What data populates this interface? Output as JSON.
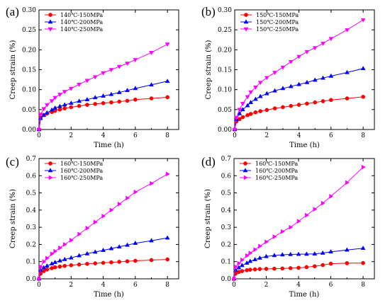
{
  "chart_data": [
    {
      "type": "line",
      "panel_label": "(a)",
      "xlabel": "Time (h)",
      "ylabel": "Creep strain (%)",
      "xlim": [
        0,
        8.7
      ],
      "ylim": [
        0,
        0.3
      ],
      "xticks": [
        "0",
        "2",
        "4",
        "6",
        "8"
      ],
      "yticks": [
        "0.00",
        "0.05",
        "0.10",
        "0.15",
        "0.20",
        "0.25",
        "0.30"
      ],
      "grid": false,
      "legend": "top-left",
      "series": [
        {
          "name": "140℃-150MPa",
          "color": "#ff0000",
          "marker": "circle",
          "x": [
            0,
            0.1,
            0.3,
            0.5,
            0.8,
            1.0,
            1.3,
            1.6,
            2.0,
            2.5,
            3.0,
            3.5,
            4.0,
            4.5,
            5.0,
            5.5,
            6.0,
            7.0,
            8.0
          ],
          "y": [
            0,
            0.03,
            0.036,
            0.04,
            0.044,
            0.047,
            0.05,
            0.053,
            0.056,
            0.059,
            0.062,
            0.064,
            0.066,
            0.068,
            0.07,
            0.072,
            0.075,
            0.078,
            0.081
          ]
        },
        {
          "name": "140℃-200MPa",
          "color": "#0000ff",
          "marker": "triangle",
          "x": [
            0,
            0.1,
            0.3,
            0.5,
            0.8,
            1.0,
            1.3,
            1.6,
            2.0,
            2.5,
            3.0,
            3.5,
            4.0,
            4.5,
            5.0,
            5.5,
            6.0,
            7.0,
            8.0
          ],
          "y": [
            0,
            0.028,
            0.036,
            0.042,
            0.049,
            0.054,
            0.058,
            0.062,
            0.066,
            0.071,
            0.075,
            0.08,
            0.084,
            0.088,
            0.093,
            0.098,
            0.103,
            0.112,
            0.121
          ]
        },
        {
          "name": "140℃-250MPa",
          "color": "#ff00ff",
          "marker": "triangle-down",
          "x": [
            0,
            0.1,
            0.3,
            0.5,
            0.8,
            1.0,
            1.3,
            1.6,
            2.0,
            2.5,
            3.0,
            3.5,
            4.0,
            4.5,
            5.0,
            5.5,
            6.0,
            7.0,
            8.0
          ],
          "y": [
            0,
            0.038,
            0.052,
            0.062,
            0.072,
            0.08,
            0.088,
            0.095,
            0.103,
            0.113,
            0.123,
            0.132,
            0.142,
            0.15,
            0.158,
            0.166,
            0.175,
            0.193,
            0.214
          ]
        }
      ]
    },
    {
      "type": "line",
      "panel_label": "(b)",
      "xlabel": "Time (h)",
      "ylabel": "Creep strain (%)",
      "xlim": [
        0,
        8.7
      ],
      "ylim": [
        0,
        0.3
      ],
      "xticks": [
        "0",
        "2",
        "4",
        "6",
        "8"
      ],
      "yticks": [
        "0.00",
        "0.05",
        "0.10",
        "0.15",
        "0.20",
        "0.25",
        "0.30"
      ],
      "grid": false,
      "legend": "top-left",
      "series": [
        {
          "name": "150℃-150MPa",
          "color": "#ff0000",
          "marker": "circle",
          "x": [
            0,
            0.1,
            0.3,
            0.5,
            0.8,
            1.0,
            1.3,
            1.6,
            2.0,
            2.5,
            3.0,
            3.5,
            4.0,
            4.5,
            5.0,
            5.5,
            6.0,
            7.0,
            8.0
          ],
          "y": [
            0,
            0.02,
            0.026,
            0.031,
            0.036,
            0.039,
            0.043,
            0.046,
            0.049,
            0.053,
            0.056,
            0.059,
            0.062,
            0.065,
            0.068,
            0.071,
            0.074,
            0.078,
            0.082
          ]
        },
        {
          "name": "150℃-200MPa",
          "color": "#0000ff",
          "marker": "triangle",
          "x": [
            0,
            0.1,
            0.3,
            0.5,
            0.8,
            1.0,
            1.3,
            1.6,
            2.0,
            2.5,
            3.0,
            3.5,
            4.0,
            4.5,
            5.0,
            5.5,
            6.0,
            7.0,
            8.0
          ],
          "y": [
            0,
            0.025,
            0.04,
            0.05,
            0.06,
            0.068,
            0.076,
            0.083,
            0.09,
            0.097,
            0.103,
            0.108,
            0.113,
            0.118,
            0.124,
            0.129,
            0.134,
            0.143,
            0.153
          ]
        },
        {
          "name": "150℃-250MPa",
          "color": "#ff00ff",
          "marker": "triangle-down",
          "x": [
            0,
            0.1,
            0.3,
            0.5,
            0.8,
            1.0,
            1.3,
            1.6,
            2.0,
            2.5,
            3.0,
            3.5,
            4.0,
            4.5,
            5.0,
            5.5,
            6.0,
            7.0,
            8.0
          ],
          "y": [
            0,
            0.03,
            0.05,
            0.065,
            0.082,
            0.094,
            0.106,
            0.118,
            0.13,
            0.143,
            0.156,
            0.17,
            0.183,
            0.195,
            0.205,
            0.216,
            0.228,
            0.25,
            0.275
          ]
        }
      ]
    },
    {
      "type": "line",
      "panel_label": "(c)",
      "xlabel": "Time (h)",
      "ylabel": "Creep strain (%)",
      "xlim": [
        0,
        8.7
      ],
      "ylim": [
        0,
        0.7
      ],
      "xticks": [
        "0",
        "2",
        "4",
        "6",
        "8"
      ],
      "yticks": [
        "0.0",
        "0.1",
        "0.2",
        "0.3",
        "0.4",
        "0.5",
        "0.6",
        "0.7"
      ],
      "grid": false,
      "legend": "top-left",
      "series": [
        {
          "name": "160℃-150MPa",
          "color": "#ff0000",
          "marker": "circle",
          "x": [
            0,
            0.1,
            0.3,
            0.5,
            0.8,
            1.0,
            1.3,
            1.6,
            2.0,
            2.5,
            3.0,
            3.5,
            4.0,
            4.5,
            5.0,
            5.5,
            6.0,
            7.0,
            8.0
          ],
          "y": [
            0,
            0.03,
            0.045,
            0.054,
            0.062,
            0.067,
            0.071,
            0.075,
            0.079,
            0.083,
            0.087,
            0.09,
            0.093,
            0.096,
            0.099,
            0.102,
            0.105,
            0.109,
            0.113
          ]
        },
        {
          "name": "160℃-200MPa",
          "color": "#0000ff",
          "marker": "triangle",
          "x": [
            0,
            0.1,
            0.3,
            0.5,
            0.8,
            1.0,
            1.3,
            1.6,
            2.0,
            2.5,
            3.0,
            3.5,
            4.0,
            4.5,
            5.0,
            5.5,
            6.0,
            7.0,
            8.0
          ],
          "y": [
            0,
            0.05,
            0.065,
            0.075,
            0.088,
            0.096,
            0.105,
            0.113,
            0.122,
            0.135,
            0.146,
            0.156,
            0.166,
            0.176,
            0.186,
            0.196,
            0.207,
            0.222,
            0.238
          ]
        },
        {
          "name": "160℃-250MPa",
          "color": "#ff00ff",
          "marker": "triangle-right",
          "x": [
            0,
            0.1,
            0.3,
            0.5,
            0.8,
            1.0,
            1.3,
            1.6,
            2.0,
            2.5,
            3.0,
            3.5,
            4.0,
            4.5,
            5.0,
            5.5,
            6.0,
            7.0,
            8.0
          ],
          "y": [
            0,
            0.07,
            0.1,
            0.12,
            0.145,
            0.16,
            0.18,
            0.2,
            0.225,
            0.26,
            0.295,
            0.33,
            0.365,
            0.4,
            0.435,
            0.47,
            0.505,
            0.555,
            0.61
          ]
        }
      ]
    },
    {
      "type": "line",
      "panel_label": "(d)",
      "xlabel": "Time (h)",
      "ylabel": "Creep strain (%)",
      "xlim": [
        0,
        8.7
      ],
      "ylim": [
        0,
        0.7
      ],
      "xticks": [
        "0",
        "2",
        "4",
        "6",
        "8"
      ],
      "yticks": [
        "0.0",
        "0.1",
        "0.2",
        "0.3",
        "0.4",
        "0.5",
        "0.6",
        "0.7"
      ],
      "grid": false,
      "legend": "top-left",
      "series": [
        {
          "name": "160℃-150MPa",
          "color": "#ff0000",
          "marker": "circle",
          "x": [
            0,
            0.1,
            0.3,
            0.5,
            0.8,
            1.0,
            1.3,
            1.6,
            2.0,
            2.5,
            3.0,
            3.5,
            4.0,
            4.5,
            5.0,
            5.5,
            6.0,
            7.0,
            8.0
          ],
          "y": [
            0,
            0.03,
            0.04,
            0.045,
            0.05,
            0.053,
            0.055,
            0.057,
            0.058,
            0.059,
            0.06,
            0.062,
            0.064,
            0.068,
            0.073,
            0.08,
            0.088,
            0.091,
            0.092
          ]
        },
        {
          "name": "160℃-200MPa",
          "color": "#0000ff",
          "marker": "triangle",
          "x": [
            0,
            0.1,
            0.3,
            0.5,
            0.8,
            1.0,
            1.3,
            1.6,
            2.0,
            2.5,
            3.0,
            3.5,
            4.0,
            4.5,
            5.0,
            5.5,
            6.0,
            7.0,
            8.0
          ],
          "y": [
            0,
            0.05,
            0.065,
            0.078,
            0.092,
            0.102,
            0.112,
            0.121,
            0.13,
            0.136,
            0.14,
            0.142,
            0.143,
            0.144,
            0.145,
            0.15,
            0.157,
            0.168,
            0.178
          ]
        },
        {
          "name": "160℃-250MPa",
          "color": "#ff00ff",
          "marker": "triangle-right",
          "x": [
            0,
            0.1,
            0.3,
            0.5,
            0.8,
            1.0,
            1.3,
            1.6,
            2.0,
            2.5,
            3.0,
            3.5,
            4.0,
            4.5,
            5.0,
            5.5,
            6.0,
            7.0,
            8.0
          ],
          "y": [
            0,
            0.07,
            0.09,
            0.11,
            0.135,
            0.15,
            0.17,
            0.19,
            0.215,
            0.245,
            0.275,
            0.3,
            0.335,
            0.37,
            0.405,
            0.44,
            0.48,
            0.56,
            0.65
          ]
        }
      ]
    }
  ]
}
